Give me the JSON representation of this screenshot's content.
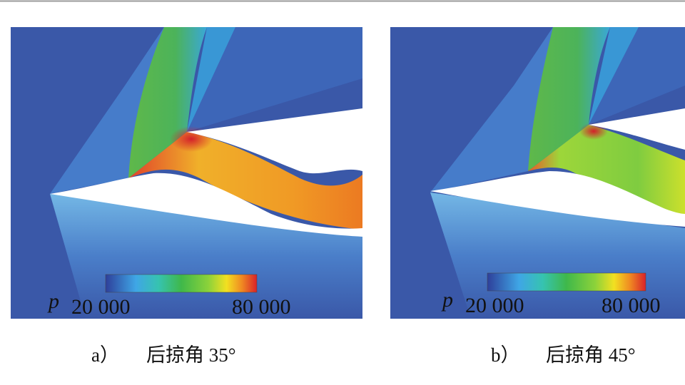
{
  "panels": [
    {
      "label": "a）",
      "caption": "后掠角 35°",
      "colorbar": {
        "symbol": "p",
        "min_label": "20 000",
        "max_label": "80 000"
      }
    },
    {
      "label": "b）",
      "caption": "后掠角 45°",
      "colorbar": {
        "symbol": "p",
        "min_label": "20 000",
        "max_label": "80 000"
      }
    }
  ]
}
